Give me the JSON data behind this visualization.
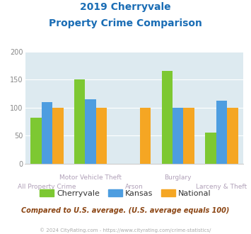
{
  "title_line1": "2019 Cherryvale",
  "title_line2": "Property Crime Comparison",
  "categories": [
    "All Property Crime",
    "Motor Vehicle Theft",
    "Arson",
    "Burglary",
    "Larceny & Theft"
  ],
  "cherryvale": [
    82,
    150,
    0,
    165,
    55
  ],
  "kansas": [
    110,
    115,
    0,
    100,
    112
  ],
  "national": [
    100,
    100,
    100,
    100,
    100
  ],
  "color_cherryvale": "#7dc832",
  "color_kansas": "#4d9de0",
  "color_national": "#f5a623",
  "color_title": "#1a6db5",
  "color_bg_chart": "#ddeaf0",
  "color_cat_label_bottom": "#b0a0b0",
  "color_cat_label_top": "#b0a0b0",
  "ylim": [
    0,
    200
  ],
  "yticks": [
    0,
    50,
    100,
    150,
    200
  ],
  "subtitle_text": "Compared to U.S. average. (U.S. average equals 100)",
  "footer_text": "© 2024 CityRating.com - https://www.cityrating.com/crime-statistics/",
  "legend_labels": [
    "Cherryvale",
    "Kansas",
    "National"
  ],
  "bar_width": 0.25,
  "subtitle_color": "#8b4513",
  "footer_color": "#aaaaaa",
  "legend_text_color": "#333333"
}
